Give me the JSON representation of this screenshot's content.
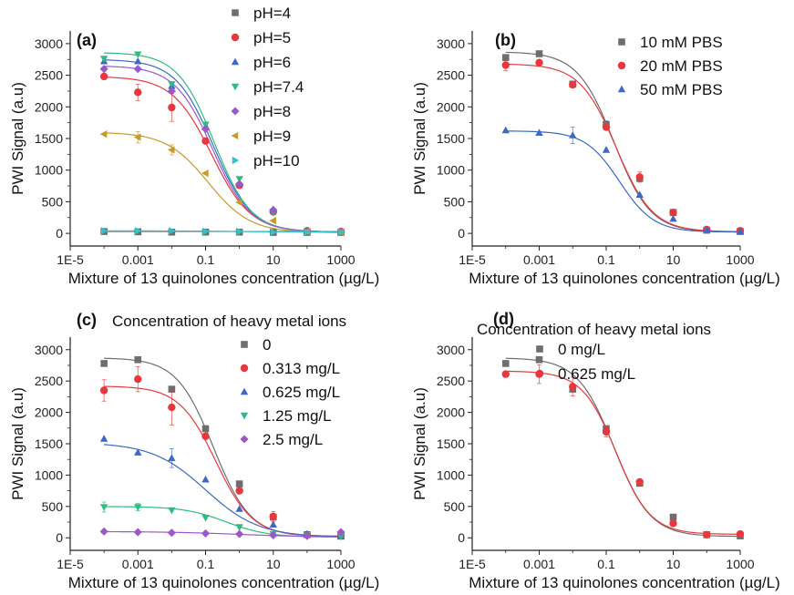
{
  "chart_data": [
    {
      "panel_label": "(a)",
      "type": "scatter",
      "xlabel": "Mixture of 13 quinolones concentration (µg/L)",
      "ylabel": "PWI Signal (a.u)",
      "xscale": "log",
      "xlim": [
        1e-05,
        1000
      ],
      "ylim": [
        -200,
        3200
      ],
      "xticks": [
        1e-05,
        0.001,
        0.1,
        10,
        1000
      ],
      "xtick_labels": [
        "1E-5",
        "0.001",
        "0.1",
        "10",
        "1000"
      ],
      "yticks": [
        0,
        500,
        1000,
        1500,
        2000,
        2500,
        3000
      ],
      "ytick_labels": [
        "0",
        "500",
        "1000",
        "1500",
        "2000",
        "2500",
        "3000"
      ],
      "legend_title": "",
      "legend_position": "top-right",
      "x": [
        0.0001,
        0.001,
        0.01,
        0.1,
        1,
        10,
        100,
        1000
      ],
      "series": [
        {
          "name": "pH=4",
          "color": "#6e6e6e",
          "marker": "square",
          "values": [
            30,
            25,
            20,
            20,
            20,
            15,
            15,
            15
          ],
          "errors": [
            0,
            0,
            0,
            0,
            0,
            0,
            0,
            0
          ],
          "fit": [
            30,
            30,
            30,
            0.5,
            1,
            10
          ]
        },
        {
          "name": "pH=5",
          "color": "#e8383d",
          "marker": "circle",
          "values": [
            2480,
            2230,
            1990,
            1460,
            760,
            340,
            40,
            30
          ],
          "errors": [
            0,
            130,
            220,
            0,
            0,
            0,
            0,
            0
          ],
          "fit": [
            2480,
            20,
            0.15,
            0.75
          ]
        },
        {
          "name": "pH=6",
          "color": "#3c68c8",
          "marker": "triangle-up",
          "values": [
            2720,
            2720,
            2330,
            1680,
            800,
            380,
            40,
            30
          ],
          "errors": [
            0,
            0,
            0,
            0,
            0,
            0,
            0,
            0
          ],
          "fit": [
            2750,
            20,
            0.17,
            0.78
          ]
        },
        {
          "name": "pH=7.4",
          "color": "#2ebd80",
          "marker": "triangle-down",
          "values": [
            2760,
            2830,
            2360,
            1720,
            860,
            330,
            30,
            20
          ],
          "errors": [
            0,
            0,
            0,
            0,
            0,
            0,
            0,
            0
          ],
          "fit": [
            2860,
            20,
            0.18,
            0.8
          ]
        },
        {
          "name": "pH=8",
          "color": "#9b59c8",
          "marker": "diamond",
          "values": [
            2600,
            2600,
            2250,
            1650,
            780,
            370,
            40,
            30
          ],
          "errors": [
            0,
            0,
            0,
            0,
            0,
            0,
            0,
            0
          ],
          "fit": [
            2650,
            20,
            0.16,
            0.78
          ]
        },
        {
          "name": "pH=9",
          "color": "#c89a2c",
          "marker": "triangle-left",
          "values": [
            1570,
            1520,
            1320,
            950,
            490,
            200,
            30,
            20
          ],
          "errors": [
            0,
            90,
            80,
            0,
            0,
            0,
            0,
            0
          ],
          "fit": [
            1600,
            10,
            0.12,
            0.7
          ]
        },
        {
          "name": "pH=10",
          "color": "#2fc3c8",
          "marker": "triangle-right",
          "values": [
            40,
            40,
            40,
            30,
            30,
            20,
            20,
            20
          ],
          "errors": [
            0,
            0,
            0,
            0,
            0,
            0,
            0,
            0
          ],
          "fit": [
            40,
            20,
            1,
            0.5
          ]
        }
      ]
    },
    {
      "panel_label": "(b)",
      "type": "scatter",
      "xlabel": "Mixture of 13 quinolones concentration (µg/L)",
      "ylabel": "PWI Signal (a.u)",
      "xscale": "log",
      "xlim": [
        1e-05,
        1000
      ],
      "ylim": [
        -200,
        3200
      ],
      "xticks": [
        1e-05,
        0.001,
        0.1,
        10,
        1000
      ],
      "xtick_labels": [
        "1E-5",
        "0.001",
        "0.1",
        "10",
        "1000"
      ],
      "yticks": [
        0,
        500,
        1000,
        1500,
        2000,
        2500,
        3000
      ],
      "ytick_labels": [
        "0",
        "500",
        "1000",
        "1500",
        "2000",
        "2500",
        "3000"
      ],
      "legend_title": "",
      "legend_position": "top-right",
      "x": [
        0.0001,
        0.001,
        0.01,
        0.1,
        1,
        10,
        100,
        1000
      ],
      "series": [
        {
          "name": "10 mM PBS",
          "color": "#6e6e6e",
          "marker": "square",
          "values": [
            2780,
            2840,
            2360,
            1720,
            870,
            330,
            50,
            30
          ],
          "errors": [
            0,
            0,
            0,
            60,
            0,
            0,
            0,
            0
          ],
          "fit": [
            2870,
            20,
            0.17,
            0.8
          ]
        },
        {
          "name": "20 mM PBS",
          "color": "#e8383d",
          "marker": "circle",
          "values": [
            2660,
            2700,
            2350,
            1680,
            890,
            330,
            60,
            40
          ],
          "errors": [
            90,
            0,
            0,
            0,
            80,
            0,
            0,
            0
          ],
          "fit": [
            2680,
            25,
            0.2,
            0.8
          ]
        },
        {
          "name": "50 mM PBS",
          "color": "#3c68c8",
          "marker": "triangle-up",
          "values": [
            1630,
            1590,
            1550,
            1320,
            610,
            230,
            60,
            30
          ],
          "errors": [
            0,
            0,
            130,
            0,
            0,
            0,
            0,
            0
          ],
          "fit": [
            1620,
            20,
            0.25,
            0.85
          ]
        }
      ]
    },
    {
      "panel_label": "(c)",
      "type": "scatter",
      "xlabel": "Mixture of 13 quinolones concentration (µg/L)",
      "ylabel": "PWI Signal (a.u)",
      "xscale": "log",
      "xlim": [
        1e-05,
        1000
      ],
      "ylim": [
        -200,
        3200
      ],
      "xticks": [
        1e-05,
        0.001,
        0.1,
        10,
        1000
      ],
      "xtick_labels": [
        "1E-5",
        "0.001",
        "0.1",
        "10",
        "1000"
      ],
      "yticks": [
        0,
        500,
        1000,
        1500,
        2000,
        2500,
        3000
      ],
      "ytick_labels": [
        "0",
        "500",
        "1000",
        "1500",
        "2000",
        "2500",
        "3000"
      ],
      "legend_title": "Concentration of heavy metal ions",
      "legend_position": "top-right",
      "x": [
        0.0001,
        0.001,
        0.01,
        0.1,
        1,
        10,
        100,
        1000
      ],
      "series": [
        {
          "name": "0",
          "color": "#6e6e6e",
          "marker": "square",
          "values": [
            2780,
            2840,
            2370,
            1740,
            860,
            330,
            50,
            30
          ],
          "errors": [
            0,
            0,
            0,
            0,
            0,
            0,
            0,
            0
          ],
          "fit": [
            2870,
            20,
            0.17,
            0.8
          ]
        },
        {
          "name": "0.313 mg/L",
          "color": "#e8383d",
          "marker": "circle",
          "values": [
            2350,
            2530,
            2080,
            1620,
            750,
            340,
            50,
            40
          ],
          "errors": [
            170,
            200,
            280,
            0,
            0,
            80,
            0,
            0
          ],
          "fit": [
            2420,
            25,
            0.2,
            0.8
          ]
        },
        {
          "name": "0.625 mg/L",
          "color": "#3c68c8",
          "marker": "triangle-up",
          "values": [
            1580,
            1360,
            1270,
            930,
            460,
            210,
            60,
            20
          ],
          "errors": [
            0,
            0,
            150,
            0,
            0,
            0,
            0,
            0
          ],
          "fit": [
            1520,
            10,
            0.1,
            0.55
          ]
        },
        {
          "name": "1.25 mg/L",
          "color": "#2ebd80",
          "marker": "triangle-down",
          "values": [
            490,
            490,
            440,
            320,
            170,
            60,
            40,
            20
          ],
          "errors": [
            80,
            60,
            0,
            0,
            0,
            0,
            0,
            0
          ],
          "fit": [
            500,
            10,
            0.4,
            0.7
          ]
        },
        {
          "name": "2.5 mg/L",
          "color": "#9b59c8",
          "marker": "diamond",
          "values": [
            100,
            90,
            80,
            70,
            60,
            40,
            30,
            90
          ],
          "errors": [
            0,
            0,
            0,
            0,
            0,
            0,
            0,
            0
          ],
          "fit": [
            100,
            10,
            1,
            0.4
          ]
        }
      ]
    },
    {
      "panel_label": "(d)",
      "type": "scatter",
      "xlabel": "Mixture of 13 quinolones concentration (µg/L)",
      "ylabel": "PWI Signal (a.u)",
      "xscale": "log",
      "xlim": [
        1e-05,
        1000
      ],
      "ylim": [
        -200,
        3200
      ],
      "xticks": [
        1e-05,
        0.001,
        0.1,
        10,
        1000
      ],
      "xtick_labels": [
        "1E-5",
        "0.001",
        "0.1",
        "10",
        "1000"
      ],
      "yticks": [
        0,
        500,
        1000,
        1500,
        2000,
        2500,
        3000
      ],
      "ytick_labels": [
        "0",
        "500",
        "1000",
        "1500",
        "2000",
        "2500",
        "3000"
      ],
      "legend_title": "Concentration of heavy metal ions",
      "legend_position": "top-right",
      "x": [
        0.0001,
        0.001,
        0.01,
        0.1,
        1,
        10,
        100,
        1000
      ],
      "series": [
        {
          "name": "0 mg/L",
          "color": "#6e6e6e",
          "marker": "square",
          "values": [
            2780,
            2840,
            2370,
            1740,
            870,
            330,
            50,
            30
          ],
          "errors": [
            0,
            0,
            0,
            0,
            0,
            0,
            0,
            0
          ],
          "fit": [
            2870,
            20,
            0.17,
            0.8
          ]
        },
        {
          "name": "0.625 mg/L",
          "color": "#e8383d",
          "marker": "circle",
          "values": [
            2610,
            2610,
            2410,
            1690,
            890,
            230,
            50,
            60
          ],
          "errors": [
            0,
            150,
            150,
            80,
            0,
            0,
            0,
            0
          ],
          "fit": [
            2660,
            55,
            0.2,
            0.85
          ]
        }
      ]
    }
  ]
}
